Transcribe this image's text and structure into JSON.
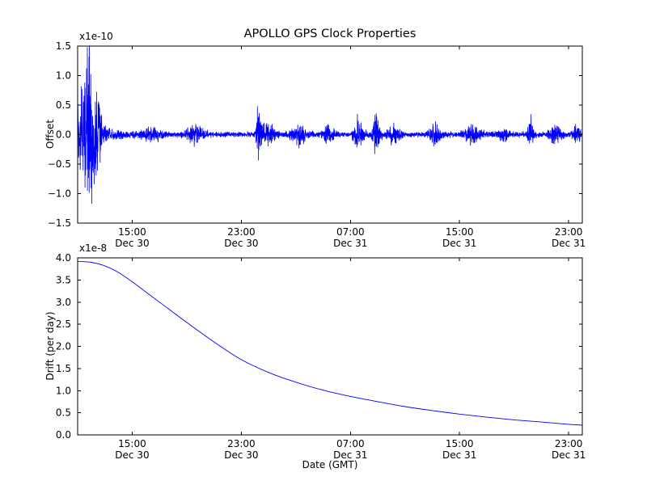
{
  "title": "APOLLO GPS Clock Properties",
  "chart_data": [
    {
      "type": "line",
      "name": "offset",
      "ylabel": "Offset",
      "scale_label": "x1e-10",
      "y_unit": "1e-10",
      "ylim": [
        -1.5,
        1.5
      ],
      "yticks": [
        "1.5",
        "1.0",
        "0.5",
        "0.0",
        "−0.5",
        "−1.0",
        "−1.5"
      ],
      "x_hours_range": [
        0,
        37
      ],
      "xticks": [
        {
          "t": 4,
          "time": "15:00",
          "date": "Dec 30"
        },
        {
          "t": 12,
          "time": "23:00",
          "date": "Dec 30"
        },
        {
          "t": 20,
          "time": "07:00",
          "date": "Dec 31"
        },
        {
          "t": 28,
          "time": "15:00",
          "date": "Dec 31"
        },
        {
          "t": 36,
          "time": "23:00",
          "date": "Dec 31"
        }
      ],
      "line_color": "#0000ff",
      "noise_model": {
        "dt": 0.01,
        "base_amp": 0.04,
        "early_elevated": {
          "amp": 0.5,
          "decay": 1.1
        },
        "main_burst": {
          "t": 1.0,
          "amp": 0.95,
          "width": 0.55
        },
        "bursts": [
          {
            "t": 5.5,
            "amp": 0.07,
            "width": 0.8
          },
          {
            "t": 8.6,
            "amp": 0.12,
            "width": 0.6
          },
          {
            "t": 13.25,
            "amp": 0.38,
            "width": 0.18
          },
          {
            "t": 13.9,
            "amp": 0.16,
            "width": 0.5
          },
          {
            "t": 16.3,
            "amp": 0.13,
            "width": 0.6
          },
          {
            "t": 18.4,
            "amp": 0.1,
            "width": 0.5
          },
          {
            "t": 20.6,
            "amp": 0.24,
            "width": 0.35
          },
          {
            "t": 21.9,
            "amp": 0.28,
            "width": 0.25
          },
          {
            "t": 23.2,
            "amp": 0.12,
            "width": 0.5
          },
          {
            "t": 26.3,
            "amp": 0.16,
            "width": 0.4
          },
          {
            "t": 29.0,
            "amp": 0.12,
            "width": 0.6
          },
          {
            "t": 31.2,
            "amp": 0.1,
            "width": 0.4
          },
          {
            "t": 33.2,
            "amp": 0.22,
            "width": 0.2
          },
          {
            "t": 35.0,
            "amp": 0.1,
            "width": 0.5
          },
          {
            "t": 36.6,
            "amp": 0.13,
            "width": 0.3
          }
        ]
      }
    },
    {
      "type": "line",
      "name": "drift",
      "ylabel": "Drift (per day)",
      "xlabel": "Date (GMT)",
      "scale_label": "x1e-8",
      "y_unit": "1e-8",
      "ylim": [
        0,
        4.0
      ],
      "yticks": [
        "4.0",
        "3.5",
        "3.0",
        "2.5",
        "2.0",
        "1.5",
        "1.0",
        "0.5",
        "0.0"
      ],
      "x_hours_range": [
        0,
        37
      ],
      "xticks": [
        {
          "t": 4,
          "time": "15:00",
          "date": "Dec 30"
        },
        {
          "t": 12,
          "time": "23:00",
          "date": "Dec 30"
        },
        {
          "t": 20,
          "time": "07:00",
          "date": "Dec 31"
        },
        {
          "t": 28,
          "time": "15:00",
          "date": "Dec 31"
        },
        {
          "t": 36,
          "time": "23:00",
          "date": "Dec 31"
        }
      ],
      "line_color": "#0000ff",
      "points": {
        "t": [
          0,
          1,
          2,
          3,
          4,
          5,
          6,
          8,
          10,
          12,
          14,
          16,
          18,
          20,
          22,
          24,
          26,
          28,
          30,
          32,
          34,
          36,
          37
        ],
        "y": [
          3.92,
          3.9,
          3.82,
          3.67,
          3.46,
          3.23,
          3.0,
          2.54,
          2.1,
          1.7,
          1.41,
          1.19,
          1.01,
          0.87,
          0.75,
          0.64,
          0.55,
          0.47,
          0.4,
          0.34,
          0.29,
          0.24,
          0.22
        ]
      }
    }
  ]
}
